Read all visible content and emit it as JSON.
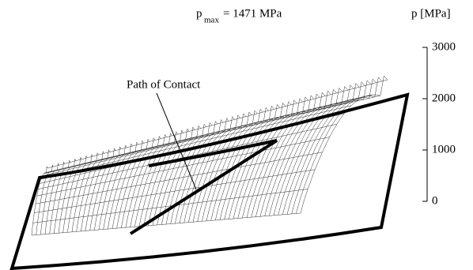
{
  "header": {
    "symbol": "p",
    "subscript": "max",
    "value": "= 1471 MPa"
  },
  "axis": {
    "label": "p [MPa]",
    "ticks": [
      "3000",
      "2000",
      "1000",
      "0"
    ]
  },
  "annotation": "Path of Contact"
}
